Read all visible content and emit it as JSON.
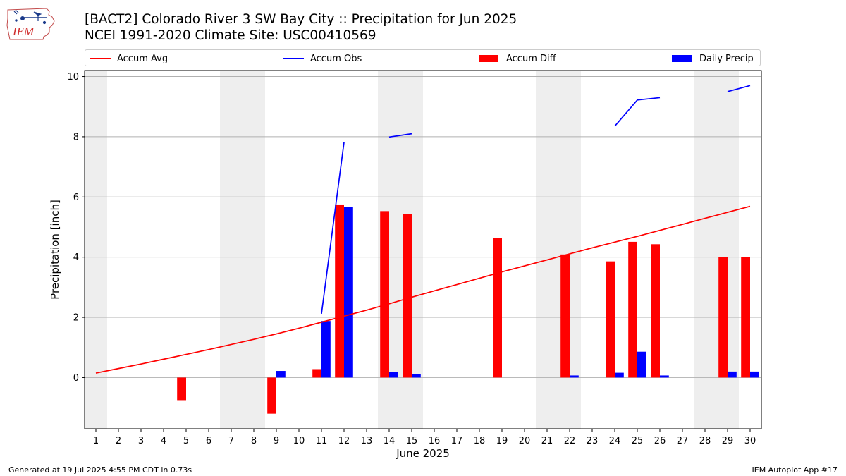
{
  "header": {
    "title_line1": "[BACT2] Colorado River 3 SW Bay City :: Precipitation for Jun 2025",
    "title_line2": "NCEI 1991-2020 Climate Site: USC00410569",
    "logo_text": "IEM"
  },
  "footer": {
    "left": "Generated at 19 Jul 2025 4:55 PM CDT in 0.73s",
    "right": "IEM Autoplot App #17"
  },
  "colors": {
    "avg": "#ff0000",
    "obs": "#0000ff",
    "diff": "#ff0000",
    "daily": "#0000ff",
    "weekend_band": "#eeeeee",
    "grid": "#b0b0b0"
  },
  "chart_data": {
    "type": "bar",
    "xlabel": "June 2025",
    "ylabel": "Precipitation [inch]",
    "x": [
      1,
      2,
      3,
      4,
      5,
      6,
      7,
      8,
      9,
      10,
      11,
      12,
      13,
      14,
      15,
      16,
      17,
      18,
      19,
      20,
      21,
      22,
      23,
      24,
      25,
      26,
      27,
      28,
      29,
      30
    ],
    "xlim": [
      0.5,
      30.5
    ],
    "ylim": [
      -1.7,
      10.2
    ],
    "yticks": [
      0,
      2,
      4,
      6,
      8,
      10
    ],
    "grid": "horizontal",
    "legend_position": "top",
    "weekend_days": [
      1,
      7,
      8,
      14,
      15,
      21,
      22,
      28,
      29
    ],
    "series": [
      {
        "name": "Accum Avg",
        "kind": "line",
        "values": [
          0.15,
          0.3,
          0.45,
          0.61,
          0.77,
          0.93,
          1.1,
          1.27,
          1.45,
          1.64,
          1.84,
          2.04,
          2.24,
          2.45,
          2.67,
          2.88,
          3.09,
          3.3,
          3.51,
          3.71,
          3.91,
          4.11,
          4.31,
          4.5,
          4.69,
          4.89,
          5.09,
          5.29,
          5.49,
          5.69
        ]
      },
      {
        "name": "Accum Obs",
        "kind": "line",
        "values": [
          null,
          null,
          null,
          null,
          null,
          null,
          null,
          null,
          null,
          null,
          2.12,
          7.82,
          null,
          7.99,
          8.1,
          null,
          null,
          null,
          null,
          null,
          null,
          null,
          null,
          8.35,
          9.22,
          9.3,
          null,
          null,
          9.5,
          9.7
        ]
      },
      {
        "name": "Accum Diff",
        "kind": "bar",
        "values": [
          null,
          null,
          null,
          null,
          -0.75,
          null,
          null,
          null,
          -1.2,
          null,
          0.28,
          5.75,
          null,
          5.53,
          5.43,
          null,
          null,
          null,
          4.64,
          null,
          null,
          4.09,
          null,
          3.86,
          4.51,
          4.43,
          null,
          null,
          4.0,
          4.0
        ]
      },
      {
        "name": "Daily Precip",
        "kind": "bar",
        "values": [
          null,
          null,
          null,
          null,
          null,
          null,
          null,
          null,
          0.22,
          null,
          1.88,
          5.67,
          null,
          0.18,
          0.11,
          null,
          null,
          null,
          null,
          null,
          null,
          0.07,
          null,
          0.16,
          0.86,
          0.07,
          null,
          null,
          0.2,
          0.2
        ]
      }
    ]
  }
}
